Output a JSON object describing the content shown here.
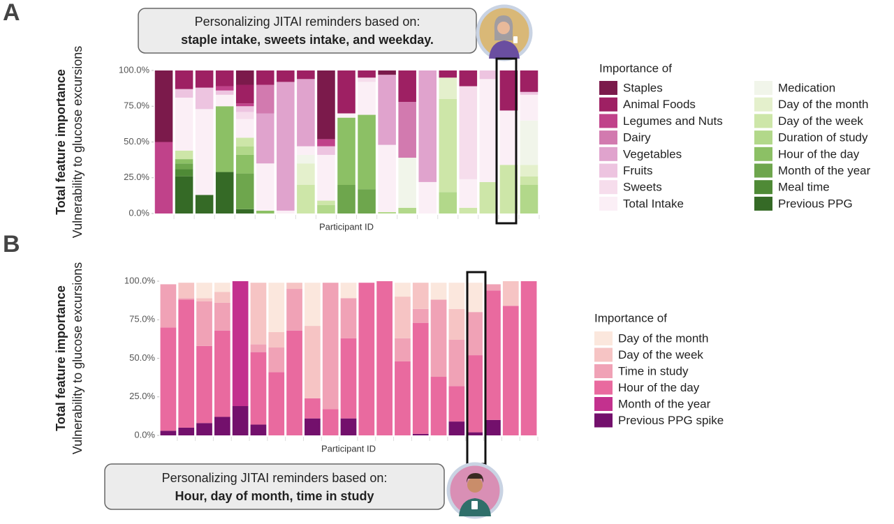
{
  "chart_data": [
    {
      "type": "stacked_bar",
      "panel": "A",
      "annotation": [
        "Personalizing JITAI reminders based on:",
        "staple intake, sweets intake, and weekday."
      ],
      "ylabel": "Total feature importance",
      "ylabel_sub": "Vulnerability to glucose excursions",
      "xlabel": "Participant ID",
      "legend_title": "Importance of",
      "categories": [
        null,
        null,
        null,
        null,
        null,
        null,
        null,
        null,
        null,
        null,
        null,
        null,
        null,
        null,
        null,
        null,
        null,
        null,
        null
      ],
      "ylim": [
        0,
        100
      ],
      "yticks": [
        {
          "value": 0,
          "label": "0.0%"
        },
        {
          "value": 25,
          "label": "25.0%"
        },
        {
          "value": 50,
          "label": "50.0%"
        },
        {
          "value": 75,
          "label": "75.0%"
        },
        {
          "value": 100,
          "label": "100.0%"
        }
      ],
      "series": [
        {
          "name": "Staples",
          "color": "#7b1a4b",
          "values": [
            50,
            0,
            0,
            0,
            10,
            0,
            0,
            0,
            48,
            0,
            0,
            3,
            0,
            0,
            0,
            0,
            0,
            0,
            0
          ]
        },
        {
          "name": "Animal Foods",
          "color": "#9e2063",
          "values": [
            0,
            13,
            12,
            11,
            13,
            10,
            8,
            6,
            0,
            30,
            5,
            0,
            22,
            0,
            5,
            11,
            0,
            28,
            15
          ]
        },
        {
          "name": "Legumes and Nuts",
          "color": "#c0428a",
          "values": [
            50,
            0,
            0,
            3,
            2,
            0,
            0,
            0,
            5,
            0,
            0,
            0,
            0,
            0,
            0,
            0,
            0,
            0,
            0
          ]
        },
        {
          "name": "Dairy",
          "color": "#d27aaf",
          "values": [
            0,
            0,
            0,
            0,
            0,
            20,
            0,
            0,
            0,
            0,
            0,
            0,
            39,
            0,
            0,
            0,
            0,
            0,
            0
          ]
        },
        {
          "name": "Vegetables",
          "color": "#e0a3cd",
          "values": [
            0,
            0,
            0,
            0,
            0,
            35,
            90,
            47,
            0,
            0,
            0,
            49,
            0,
            78,
            0,
            0,
            0,
            0,
            0
          ]
        },
        {
          "name": "Fruits",
          "color": "#edc4e0",
          "values": [
            0,
            6,
            15,
            3,
            4,
            0,
            0,
            0,
            6,
            0,
            0,
            0,
            0,
            0,
            0,
            0,
            6,
            0,
            2
          ]
        },
        {
          "name": "Sweets",
          "color": "#f6ddec",
          "values": [
            0,
            0,
            0,
            0,
            5,
            0,
            0,
            0,
            0,
            0,
            3,
            0,
            0,
            0,
            0,
            65,
            0,
            0,
            0
          ]
        },
        {
          "name": "Total Intake",
          "color": "#fbeff6",
          "values": [
            0,
            37,
            60,
            8,
            13,
            33,
            2,
            6,
            32,
            3,
            23,
            47,
            0,
            22,
            0,
            20,
            72,
            38,
            18
          ]
        },
        {
          "name": "Medication",
          "color": "#f1f5ea",
          "values": [
            0,
            0,
            0,
            0,
            0,
            0,
            0,
            6,
            0,
            0,
            0,
            0,
            35,
            0,
            0,
            0,
            0,
            0,
            31
          ]
        },
        {
          "name": "Day of the month",
          "color": "#e4f0cc",
          "values": [
            0,
            0,
            0,
            0,
            0,
            0,
            0,
            15,
            0,
            0,
            0,
            0,
            0,
            0,
            15,
            0,
            0,
            0,
            8
          ]
        },
        {
          "name": "Day of the week",
          "color": "#cde6a8",
          "values": [
            0,
            6,
            0,
            0,
            6,
            0,
            0,
            20,
            3,
            0,
            0,
            0,
            0,
            0,
            65,
            4,
            22,
            34,
            6
          ]
        },
        {
          "name": "Duration of study",
          "color": "#b2d88a",
          "values": [
            0,
            0,
            0,
            0,
            6,
            0,
            0,
            0,
            6,
            0,
            0,
            1,
            4,
            0,
            15,
            0,
            0,
            0,
            20
          ]
        },
        {
          "name": "Hour of the day",
          "color": "#8cc065",
          "values": [
            0,
            3,
            0,
            46,
            13,
            2,
            0,
            0,
            0,
            47,
            52,
            0,
            0,
            0,
            0,
            0,
            0,
            0,
            0
          ]
        },
        {
          "name": "Month of the year",
          "color": "#6ea64d",
          "values": [
            0,
            4,
            0,
            0,
            25,
            0,
            0,
            0,
            0,
            20,
            17,
            0,
            0,
            0,
            0,
            0,
            0,
            0,
            0
          ]
        },
        {
          "name": "Meal time",
          "color": "#4f8a36",
          "values": [
            0,
            5,
            0,
            0,
            0,
            0,
            0,
            0,
            0,
            0,
            0,
            0,
            0,
            0,
            0,
            0,
            0,
            0,
            0
          ]
        },
        {
          "name": "Previous PPG",
          "color": "#356a26",
          "values": [
            0,
            26,
            13,
            29,
            3,
            0,
            0,
            0,
            0,
            0,
            0,
            0,
            0,
            0,
            0,
            0,
            0,
            0,
            0
          ]
        }
      ]
    },
    {
      "type": "stacked_bar",
      "panel": "B",
      "annotation": [
        "Personalizing JITAI reminders based on:",
        "Hour, day of month, time in study"
      ],
      "ylabel": "Total feature importance",
      "ylabel_sub": "Vulnerability to glucose excursions",
      "xlabel": "Participant ID",
      "legend_title": "Importance of",
      "categories": [
        null,
        null,
        null,
        null,
        null,
        null,
        null,
        null,
        null,
        null,
        null,
        null,
        null,
        null,
        null,
        null,
        null,
        null,
        null,
        null,
        null
      ],
      "ylim": [
        0,
        100
      ],
      "yticks": [
        {
          "value": 0,
          "label": "0.0%"
        },
        {
          "value": 25,
          "label": "25.0%"
        },
        {
          "value": 50,
          "label": "50.0%"
        },
        {
          "value": 75,
          "label": "75.0%"
        },
        {
          "value": 100,
          "label": "100.0%"
        }
      ],
      "series": [
        {
          "name": "Day of the month",
          "color": "#fbe7dd",
          "values": [
            0,
            0,
            10,
            6,
            0,
            0,
            32,
            0,
            28,
            0,
            10,
            0,
            0,
            9,
            0,
            11,
            17,
            19,
            0,
            0,
            0
          ]
        },
        {
          "name": "Day of the week",
          "color": "#f6c4c4",
          "values": [
            0,
            10,
            2,
            7,
            0,
            40,
            10,
            4,
            47,
            0,
            0,
            0,
            0,
            27,
            17,
            0,
            20,
            0,
            0,
            16,
            0
          ]
        },
        {
          "name": "Time in study",
          "color": "#f0a2b6",
          "values": [
            28,
            1,
            29,
            18,
            0,
            5,
            16,
            27,
            0,
            82,
            26,
            0,
            0,
            15,
            9,
            50,
            30,
            28,
            4,
            0,
            0
          ]
        },
        {
          "name": "Hour of the day",
          "color": "#e96a9f",
          "values": [
            67,
            83,
            50,
            56,
            0,
            47,
            41,
            68,
            13,
            17,
            52,
            99,
            100,
            48,
            72,
            38,
            23,
            50,
            84,
            84,
            100
          ]
        },
        {
          "name": "Month of the year",
          "color": "#c3318e",
          "values": [
            0,
            0,
            0,
            0,
            81,
            0,
            0,
            0,
            0,
            0,
            0,
            0,
            0,
            0,
            0,
            0,
            0,
            0,
            0,
            0,
            0
          ]
        },
        {
          "name": "Previous PPG spike",
          "color": "#73106c",
          "values": [
            3,
            5,
            8,
            12,
            19,
            7,
            0,
            0,
            11,
            0,
            11,
            0,
            0,
            0,
            1,
            0,
            9,
            2,
            10,
            0,
            0
          ]
        }
      ]
    }
  ]
}
